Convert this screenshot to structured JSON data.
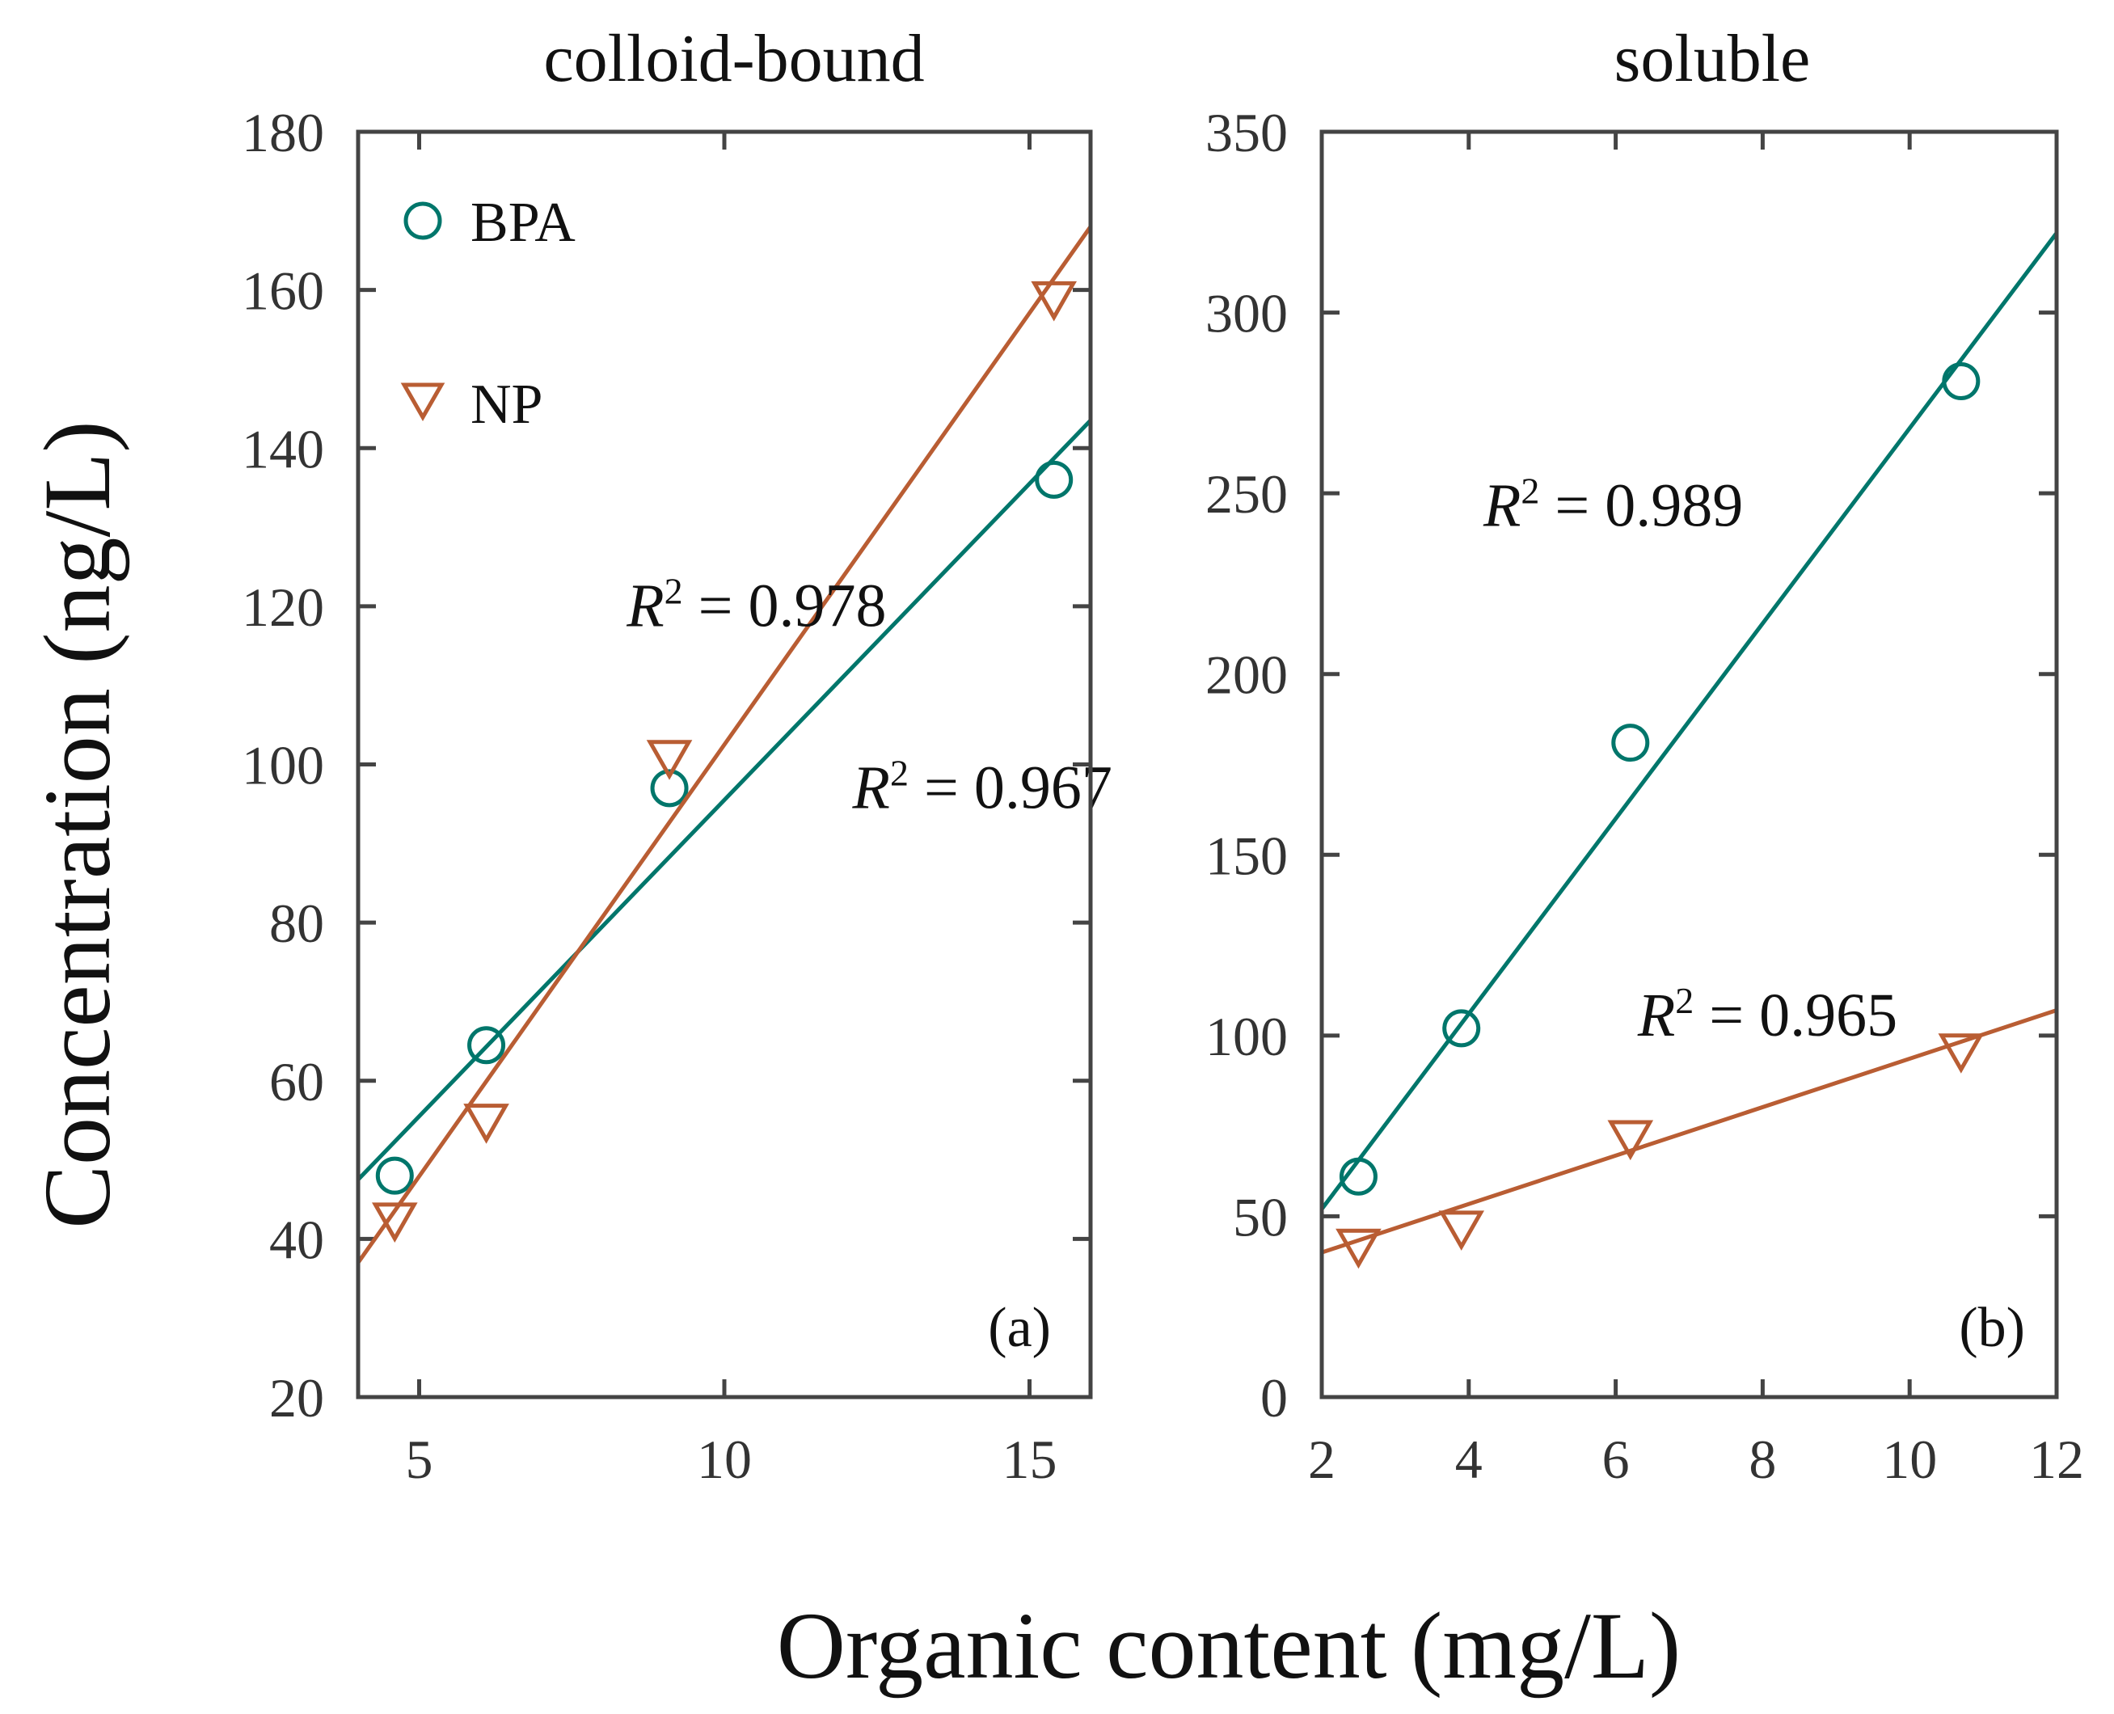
{
  "chart_data": {
    "ylabel": "Concentration (ng/L)",
    "xlabel": "Organic content (mg/L)",
    "colors": {
      "BPA": "#00766b",
      "NP": "#b95d33",
      "axis": "#444444"
    },
    "legend": {
      "location": "top-left of panel (a)",
      "entries": [
        {
          "label": "BPA",
          "marker": "circle",
          "color": "#00766b"
        },
        {
          "label": "NP",
          "marker": "triangle-down",
          "color": "#b95d33"
        }
      ]
    },
    "panels": [
      {
        "type": "scatter",
        "title": "colloid-bound",
        "tag": "(a)",
        "xlim": [
          4,
          16
        ],
        "ylim": [
          20,
          180
        ],
        "xticks": [
          5,
          10,
          15
        ],
        "yticks": [
          20,
          40,
          60,
          80,
          100,
          120,
          140,
          160,
          180
        ],
        "grid": false,
        "series": [
          {
            "name": "BPA",
            "marker": "circle",
            "color": "#00766b",
            "x": [
              4.6,
              6.1,
              9.1,
              15.4
            ],
            "y": [
              48,
              64.5,
              97,
              136
            ],
            "fit": {
              "x": [
                4,
                16
              ],
              "y": [
                47.5,
                143.5
              ]
            },
            "r2_label": {
              "prefix": "R",
              "sup": "2",
              "text": " = 0.967",
              "at": [
                12.1,
                94.5
              ]
            }
          },
          {
            "name": "NP",
            "marker": "triangle-down",
            "color": "#b95d33",
            "x": [
              4.6,
              6.1,
              9.1,
              15.4
            ],
            "y": [
              42.5,
              55,
              101,
              159
            ],
            "fit": {
              "x": [
                4,
                16
              ],
              "y": [
                37,
                168
              ]
            },
            "r2_label": {
              "prefix": "R",
              "sup": "2",
              "text": " = 0.978",
              "at": [
                8.4,
                117.5
              ]
            }
          }
        ]
      },
      {
        "type": "scatter",
        "title": "soluble",
        "tag": "(b)",
        "xlim": [
          2,
          12
        ],
        "ylim": [
          0,
          350
        ],
        "xticks": [
          2,
          4,
          6,
          8,
          10,
          12
        ],
        "yticks": [
          0,
          50,
          100,
          150,
          200,
          250,
          300,
          350
        ],
        "grid": false,
        "series": [
          {
            "name": "BPA",
            "marker": "circle",
            "color": "#00766b",
            "x": [
              2.5,
              3.9,
              6.2,
              10.7
            ],
            "y": [
              61,
              102,
              181,
              281
            ],
            "fit": {
              "x": [
                2,
                12
              ],
              "y": [
                52,
                322
              ]
            },
            "r2_label": {
              "prefix": "R",
              "sup": "2",
              "text": " = 0.989",
              "at": [
                4.2,
                241
              ]
            }
          },
          {
            "name": "NP",
            "marker": "triangle-down",
            "color": "#b95d33",
            "x": [
              2.5,
              3.9,
              6.2,
              10.7
            ],
            "y": [
              42,
              47,
              72,
              96
            ],
            "fit": {
              "x": [
                2,
                12
              ],
              "y": [
                40,
                107
              ]
            },
            "r2_label": {
              "prefix": "R",
              "sup": "2",
              "text": " = 0.965",
              "at": [
                6.3,
                100
              ]
            }
          }
        ]
      }
    ]
  }
}
